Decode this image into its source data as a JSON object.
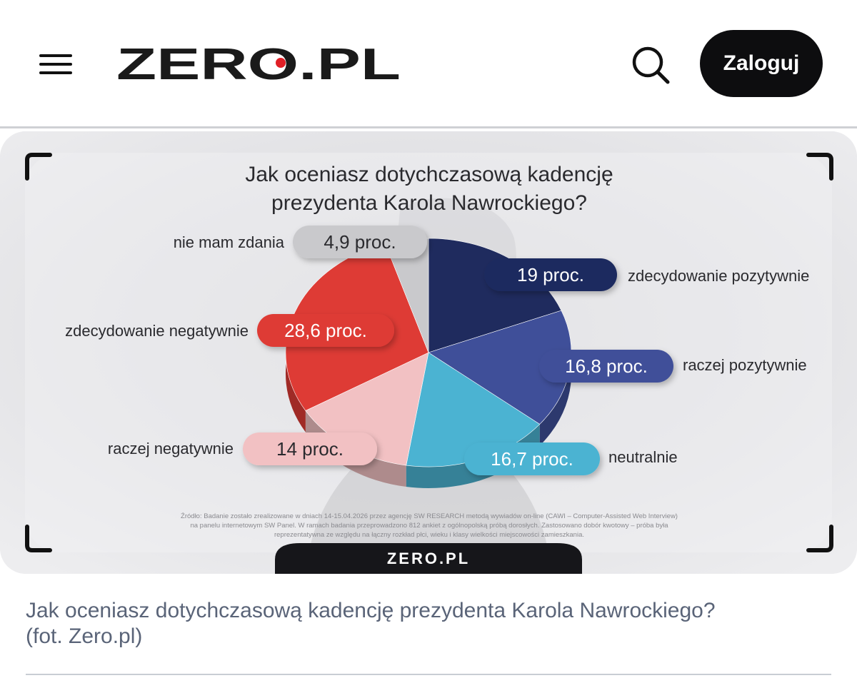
{
  "header": {
    "menu_icon": "hamburger-menu-icon",
    "logo_text": "ZERO.PL",
    "search_icon": "search-icon",
    "login_label": "Zaloguj",
    "colors": {
      "logo": "#1a1a1a",
      "logo_dot": "#e01f26",
      "button_bg": "#0d0d0f"
    }
  },
  "infographic": {
    "title_line1": "Jak oceniasz dotychczasową kadencję",
    "title_line2": "prezydenta Karola Nawrockiego?",
    "source_line1": "Źródło: Badanie zostało zrealizowane w dniach 14-15.04.2026 przez agencję SW RESEARCH metodą wywiadów on-line (CAWI – Computer-Assisted Web Interview)",
    "source_line2": "na panelu internetowym SW Panel. W ramach badania przeprowadzono 812 ankiet z ogólnopolską próbą dorosłych. Zastosowano dobór kwotowy – próba była",
    "source_line3": "reprezentatywna ze względu na łączny rozkład płci, wieku i klasy wielkości miejscowości zamieszkania.",
    "footer_logo": "ZERO.PL"
  },
  "chart_data": {
    "type": "pie",
    "title": "Jak oceniasz dotychczasową kadencję prezydenta Karola Nawrockiego?",
    "unit": "proc.",
    "slices": [
      {
        "label": "zdecydowanie pozytywnie",
        "value": 19,
        "value_label": "19 proc.",
        "color": "#1f2b5e"
      },
      {
        "label": "raczej pozytywnie",
        "value": 16.8,
        "value_label": "16,8 proc.",
        "color": "#3f4f99"
      },
      {
        "label": "neutralnie",
        "value": 16.7,
        "value_label": "16,7 proc.",
        "color": "#4bb3d2"
      },
      {
        "label": "raczej negatywnie",
        "value": 14,
        "value_label": "14 proc.",
        "color": "#f2c1c3"
      },
      {
        "label": "zdecydowanie negatywnie",
        "value": 28.6,
        "value_label": "28,6 proc.",
        "color": "#de3b35"
      },
      {
        "label": "nie mam zdania",
        "value": 4.9,
        "value_label": "4,9 proc.",
        "color": "#c9c9cc"
      }
    ]
  },
  "caption": {
    "text": "Jak oceniasz dotychczasową kadencję prezydenta Karola Nawrockiego?",
    "credit": "(fot. Zero.pl)"
  }
}
